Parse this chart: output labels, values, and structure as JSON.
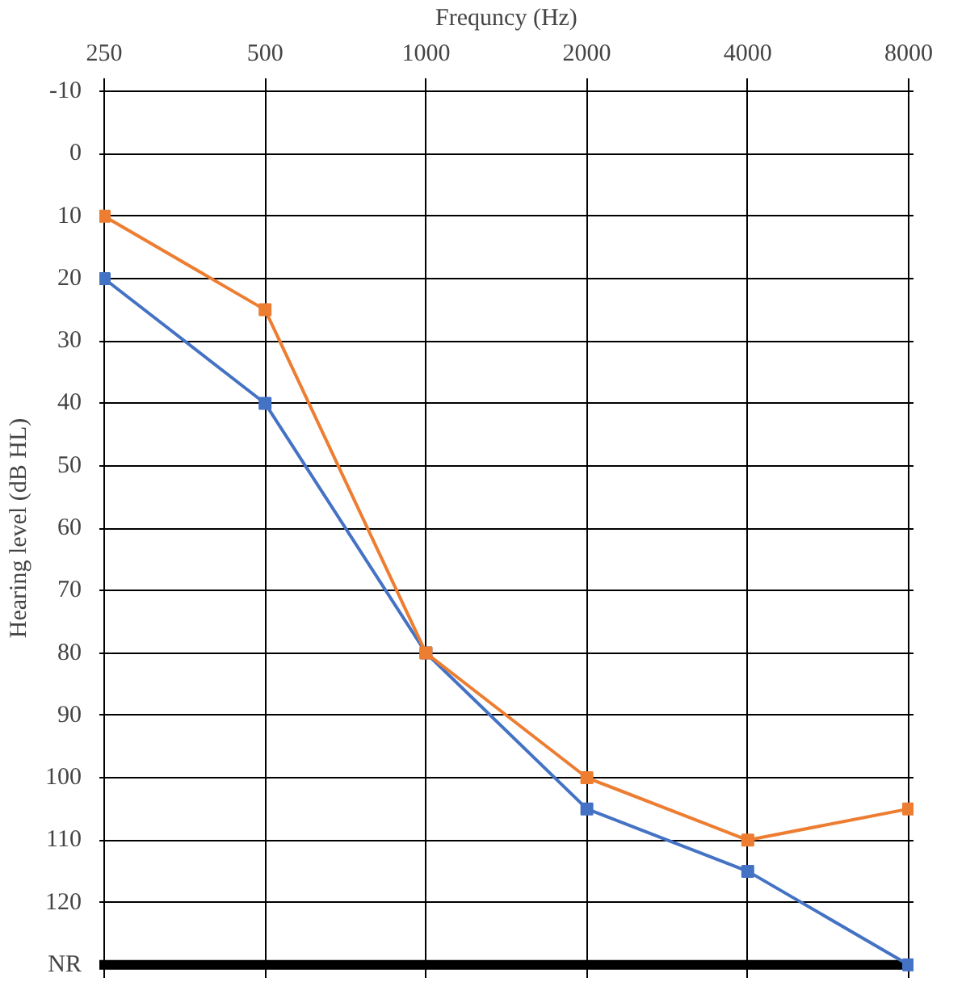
{
  "chart_data": {
    "type": "line",
    "xlabel": "Frequncy (Hz)",
    "ylabel": "Hearing level (dB HL)",
    "categories": [
      "250",
      "500",
      "1000",
      "2000",
      "4000",
      "8000"
    ],
    "series": [
      {
        "color": "#4472c4",
        "values": [
          20,
          40,
          80,
          105,
          115,
          130
        ]
      },
      {
        "color": "#ed7d31",
        "values": [
          10,
          25,
          80,
          100,
          110,
          105
        ]
      }
    ],
    "ylim": [
      130,
      -10
    ],
    "yticks": [
      -10,
      0,
      10,
      20,
      30,
      40,
      50,
      60,
      70,
      80,
      90,
      100,
      110,
      120,
      {
        "value": 130,
        "label": "NR"
      }
    ],
    "ref_lines": [
      {
        "axis": "y",
        "value": 130,
        "color": "#000000"
      }
    ],
    "grid": true,
    "marker": "square",
    "line_style": "solid"
  }
}
